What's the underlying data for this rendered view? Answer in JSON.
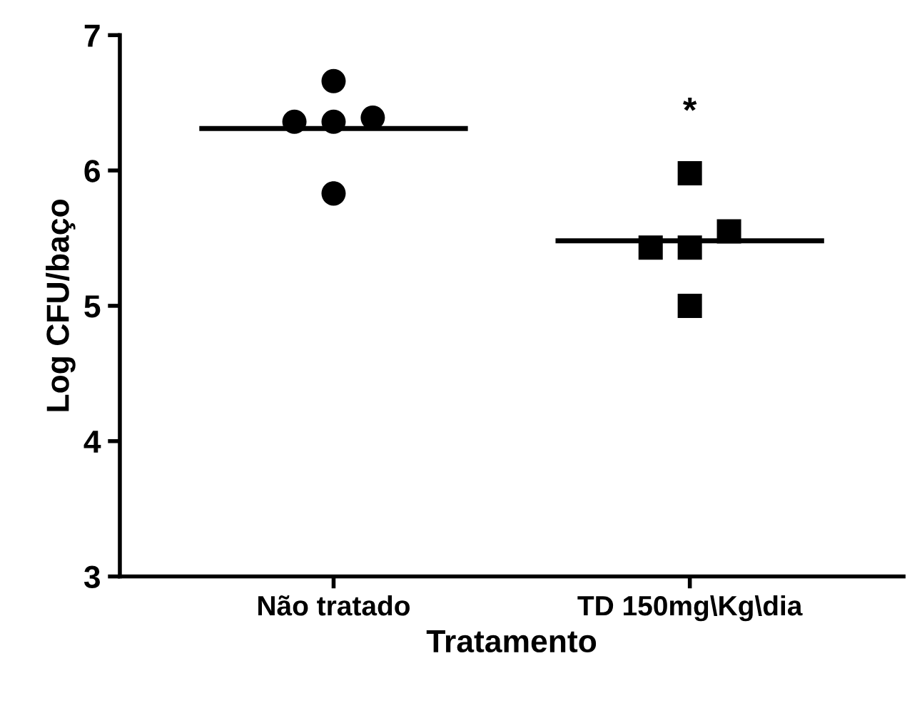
{
  "chart_data": {
    "type": "scatter",
    "xlabel": "Tratamento",
    "ylabel": "Log CFU/baço",
    "categories": [
      "Não tratado",
      "TD 150mg\\Kg\\dia"
    ],
    "series": [
      {
        "color": "#000000",
        "marker": "circle",
        "x": [
          "Não tratado",
          "Não tratado",
          "Não tratado",
          "Não tratado",
          "Não tratado"
        ],
        "values": [
          6.66,
          6.36,
          6.36,
          6.39,
          5.83
        ]
      },
      {
        "color": "#000000",
        "marker": "square",
        "x": [
          "TD 150mg\\Kg\\dia",
          "TD 150mg\\Kg\\dia",
          "TD 150mg\\Kg\\dia",
          "TD 150mg\\Kg\\dia",
          "TD 150mg\\Kg\\dia"
        ],
        "values": [
          5.98,
          5.43,
          5.43,
          5.55,
          5.0
        ]
      }
    ],
    "ref_lines": [
      {
        "axis": "y",
        "value": 6.31,
        "color": "#000000",
        "line_style": "solid"
      },
      {
        "axis": "y",
        "value": 5.48,
        "color": "#000000",
        "line_style": "solid"
      }
    ],
    "annotations": [
      "*"
    ],
    "ylim": [
      3,
      7
    ],
    "yticks": [
      3,
      4,
      5,
      6,
      7
    ],
    "grid": false,
    "legend": false
  }
}
